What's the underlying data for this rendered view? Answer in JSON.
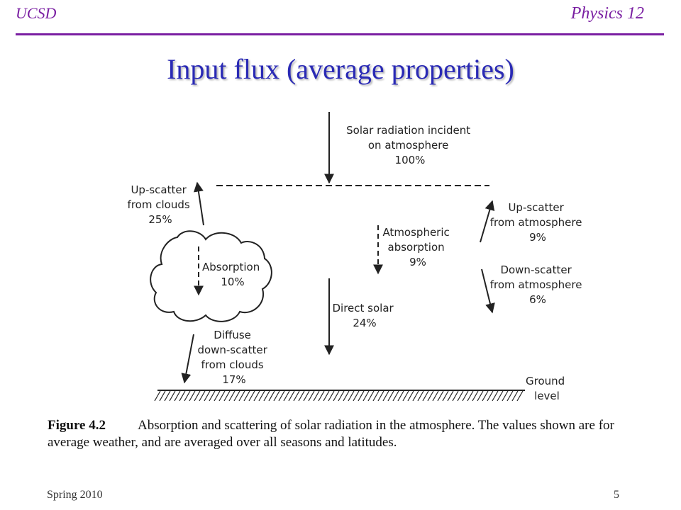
{
  "header": {
    "left": "UCSD",
    "right": "Physics 12"
  },
  "title": "Input flux (average properties)",
  "diagram": {
    "incident": [
      "Solar radiation incident",
      "on atmosphere",
      "100%"
    ],
    "upscatter_clouds": [
      "Up-scatter",
      "from clouds",
      "25%"
    ],
    "cloud_absorption": [
      "Absorption",
      "10%"
    ],
    "atmospheric_absorption": [
      "Atmospheric",
      "absorption",
      "9%"
    ],
    "direct_solar": [
      "Direct solar",
      "24%"
    ],
    "diffuse_clouds": [
      "Diffuse",
      "down-scatter",
      "from clouds",
      "17%"
    ],
    "upscatter_atmosphere": [
      "Up-scatter",
      "from atmosphere",
      "9%"
    ],
    "downscatter_atmosphere": [
      "Down-scatter",
      "from atmosphere",
      "6%"
    ],
    "ground": [
      "Ground",
      "level"
    ]
  },
  "caption": {
    "label": "Figure 4.2",
    "text": "Absorption and scattering of solar radiation in the atmosphere. The values shown are for average weather, and are averaged over all seasons and latitudes."
  },
  "footer": {
    "left": "Spring 2010",
    "right": "5"
  },
  "colors": {
    "header": "#7a1fa2",
    "title": "#2a2ab5"
  }
}
